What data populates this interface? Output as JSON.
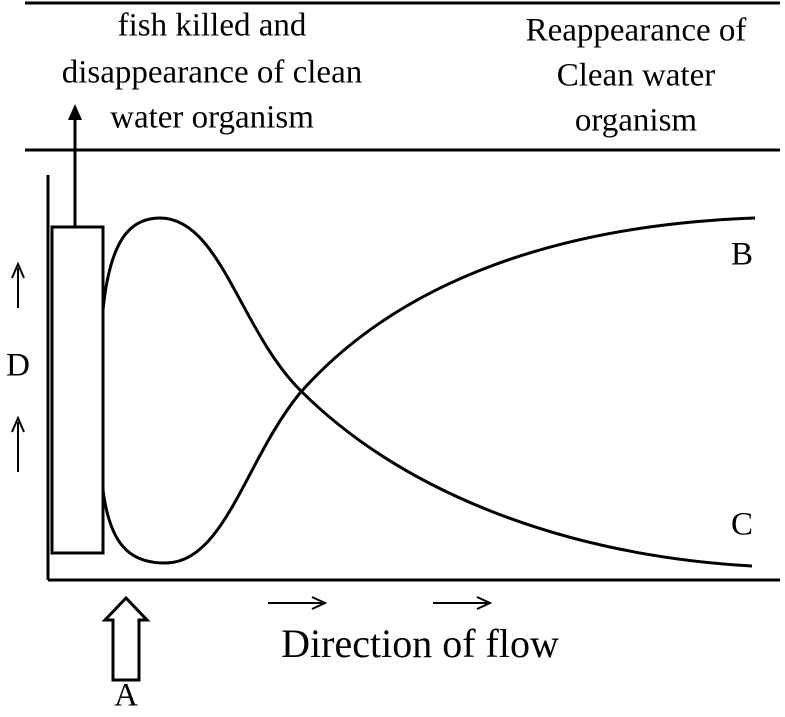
{
  "top_left_label": [
    "fish killed and",
    "disappearance of clean",
    "water organism"
  ],
  "top_right_label": [
    "Reappearance of",
    "Clean water",
    "organism"
  ],
  "curve_labels": {
    "upper_end": "B",
    "lower_end": "C"
  },
  "y_axis_label": "D",
  "source_label": "A",
  "x_axis_label": "Direction of flow"
}
